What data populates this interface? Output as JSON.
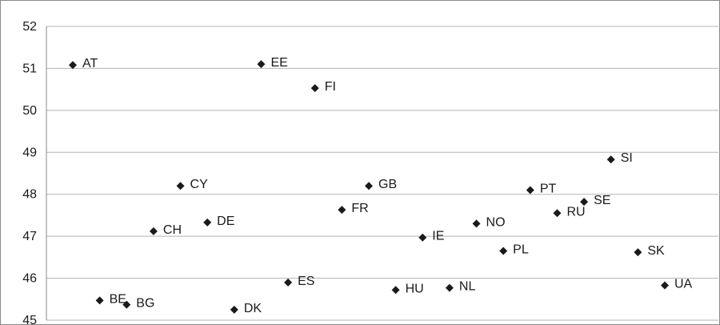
{
  "chart_data": {
    "type": "scatter",
    "title": "",
    "xlabel": "",
    "ylabel": "",
    "ylim": [
      45,
      52
    ],
    "y_ticks": [
      45,
      46,
      47,
      48,
      49,
      50,
      51,
      52
    ],
    "grid": "horizontal",
    "legend": "none",
    "marker": "diamond",
    "marker_color": "#1a1a1a",
    "points": [
      {
        "label": "AT",
        "y": 51.08
      },
      {
        "label": "BE",
        "y": 45.47
      },
      {
        "label": "BG",
        "y": 45.37
      },
      {
        "label": "CH",
        "y": 47.12
      },
      {
        "label": "CY",
        "y": 48.2
      },
      {
        "label": "DE",
        "y": 47.33
      },
      {
        "label": "DK",
        "y": 45.25
      },
      {
        "label": "EE",
        "y": 51.1
      },
      {
        "label": "ES",
        "y": 45.9
      },
      {
        "label": "FI",
        "y": 50.53
      },
      {
        "label": "FR",
        "y": 47.63
      },
      {
        "label": "GB",
        "y": 48.2
      },
      {
        "label": "HU",
        "y": 45.72
      },
      {
        "label": "IE",
        "y": 46.97
      },
      {
        "label": "NL",
        "y": 45.77
      },
      {
        "label": "NO",
        "y": 47.3
      },
      {
        "label": "PL",
        "y": 46.65
      },
      {
        "label": "PT",
        "y": 48.1
      },
      {
        "label": "RU",
        "y": 47.55
      },
      {
        "label": "SE",
        "y": 47.82
      },
      {
        "label": "SI",
        "y": 48.83
      },
      {
        "label": "SK",
        "y": 46.62
      },
      {
        "label": "UA",
        "y": 45.83
      }
    ]
  }
}
